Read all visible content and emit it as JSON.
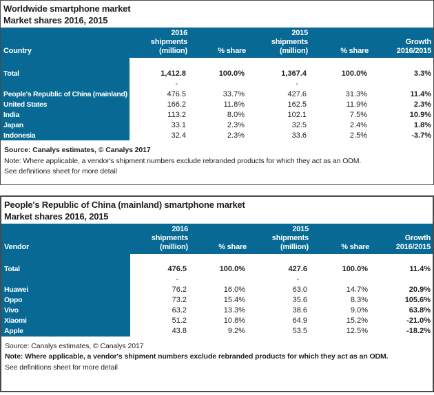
{
  "colors": {
    "header_teal": "#086a94",
    "border_dark": "#4a4a4a",
    "text": "#1f1f1f"
  },
  "tables": [
    {
      "title_line1": "Worldwide smartphone market",
      "title_line2": "Market shares 2016, 2015",
      "row_label_header": "Country",
      "columns": [
        {
          "lines": [
            "2016",
            "shipments",
            "(million)"
          ]
        },
        {
          "lines": [
            "% share"
          ]
        },
        {
          "lines": [
            "2015",
            "shipments",
            "(million)"
          ]
        },
        {
          "lines": [
            "% share"
          ]
        },
        {
          "lines": [
            "Growth",
            "2016/2015"
          ]
        }
      ],
      "total_row": {
        "label": "Total",
        "s2016": "1,412.8",
        "share2016": "100.0%",
        "s2015": "1,367.4",
        "share2015": "100.0%",
        "growth": "3.3%"
      },
      "dash_row": {
        "s2016": "-",
        "s2015": "-"
      },
      "rows": [
        {
          "label": "People's Republic of China (mainland)",
          "s2016": "476.5",
          "share2016": "33.7%",
          "s2015": "427.6",
          "share2015": "31.3%",
          "growth": "11.4%"
        },
        {
          "label": "United States",
          "s2016": "166.2",
          "share2016": "11.8%",
          "s2015": "162.5",
          "share2015": "11.9%",
          "growth": "2.3%"
        },
        {
          "label": "India",
          "s2016": "113.2",
          "share2016": "8.0%",
          "s2015": "102.1",
          "share2015": "7.5%",
          "growth": "10.9%"
        },
        {
          "label": "Japan",
          "s2016": "33.1",
          "share2016": "2.3%",
          "s2015": "32.5",
          "share2015": "2.4%",
          "growth": "1.8%"
        },
        {
          "label": "Indonesia",
          "s2016": "32.4",
          "share2016": "2.3%",
          "s2015": "33.6",
          "share2015": "2.5%",
          "growth": "-3.7%"
        }
      ],
      "notes": [
        {
          "text": "Source: Canalys estimates, © Canalys 2017",
          "bold": true
        },
        {
          "text": "Note: Where applicable, a vendor's shipment numbers exclude rebranded products for which they act as an ODM.",
          "bold": false
        },
        {
          "text": "See definitions sheet for more detail",
          "bold": false
        }
      ]
    },
    {
      "title_line1": "People's Republic of China (mainland) smartphone market",
      "title_line2": "Market shares 2016, 2015",
      "row_label_header": "Vendor",
      "columns": [
        {
          "lines": [
            "2016",
            "shipments",
            "(million)"
          ]
        },
        {
          "lines": [
            "% share"
          ]
        },
        {
          "lines": [
            "2015",
            "shipments",
            "(million)"
          ]
        },
        {
          "lines": [
            "% share"
          ]
        },
        {
          "lines": [
            "Growth",
            "2016/2015"
          ]
        }
      ],
      "total_row": {
        "label": "Total",
        "s2016": "476.5",
        "share2016": "100.0%",
        "s2015": "427.6",
        "share2015": "100.0%",
        "growth": "11.4%"
      },
      "dash_row": {
        "s2016": "-",
        "s2015": "-"
      },
      "rows": [
        {
          "label": "Huawei",
          "s2016": "76.2",
          "share2016": "16.0%",
          "s2015": "63.0",
          "share2015": "14.7%",
          "growth": "20.9%"
        },
        {
          "label": "Oppo",
          "s2016": "73.2",
          "share2016": "15.4%",
          "s2015": "35.6",
          "share2015": "8.3%",
          "growth": "105.6%"
        },
        {
          "label": "Vivo",
          "s2016": "63.2",
          "share2016": "13.3%",
          "s2015": "38.6",
          "share2015": "9.0%",
          "growth": "63.8%"
        },
        {
          "label": "Xiaomi",
          "s2016": "51.2",
          "share2016": "10.8%",
          "s2015": "64.9",
          "share2015": "15.2%",
          "growth": "-21.0%"
        },
        {
          "label": "Apple",
          "s2016": "43.8",
          "share2016": "9.2%",
          "s2015": "53.5",
          "share2015": "12.5%",
          "growth": "-18.2%"
        }
      ],
      "notes": [
        {
          "text": "Source: Canalys estimates, © Canalys 2017",
          "bold": false
        },
        {
          "text": "Note: Where applicable, a vendor's shipment numbers exclude rebranded products for which they act as an ODM.",
          "bold": true
        },
        {
          "text": "See definitions sheet for more detail",
          "bold": false
        }
      ]
    }
  ],
  "chart_data": [
    {
      "type": "table",
      "title": "Worldwide smartphone market — Market shares 2016, 2015",
      "columns": [
        "Country",
        "2016 shipments (million)",
        "% share",
        "2015 shipments (million)",
        "% share",
        "Growth 2016/2015"
      ],
      "rows": [
        [
          "Total",
          1412.8,
          "100.0%",
          1367.4,
          "100.0%",
          "3.3%"
        ],
        [
          "People's Republic of China (mainland)",
          476.5,
          "33.7%",
          427.6,
          "31.3%",
          "11.4%"
        ],
        [
          "United States",
          166.2,
          "11.8%",
          162.5,
          "11.9%",
          "2.3%"
        ],
        [
          "India",
          113.2,
          "8.0%",
          102.1,
          "7.5%",
          "10.9%"
        ],
        [
          "Japan",
          33.1,
          "2.3%",
          32.5,
          "2.4%",
          "1.8%"
        ],
        [
          "Indonesia",
          32.4,
          "2.3%",
          33.6,
          "2.5%",
          "-3.7%"
        ]
      ]
    },
    {
      "type": "table",
      "title": "People's Republic of China (mainland) smartphone market — Market shares 2016, 2015",
      "columns": [
        "Vendor",
        "2016 shipments (million)",
        "% share",
        "2015 shipments (million)",
        "% share",
        "Growth 2016/2015"
      ],
      "rows": [
        [
          "Total",
          476.5,
          "100.0%",
          427.6,
          "100.0%",
          "11.4%"
        ],
        [
          "Huawei",
          76.2,
          "16.0%",
          63.0,
          "14.7%",
          "20.9%"
        ],
        [
          "Oppo",
          73.2,
          "15.4%",
          35.6,
          "8.3%",
          "105.6%"
        ],
        [
          "Vivo",
          63.2,
          "13.3%",
          38.6,
          "9.0%",
          "63.8%"
        ],
        [
          "Xiaomi",
          51.2,
          "10.8%",
          64.9,
          "15.2%",
          "-21.0%"
        ],
        [
          "Apple",
          43.8,
          "9.2%",
          53.5,
          "12.5%",
          "-18.2%"
        ]
      ]
    }
  ]
}
